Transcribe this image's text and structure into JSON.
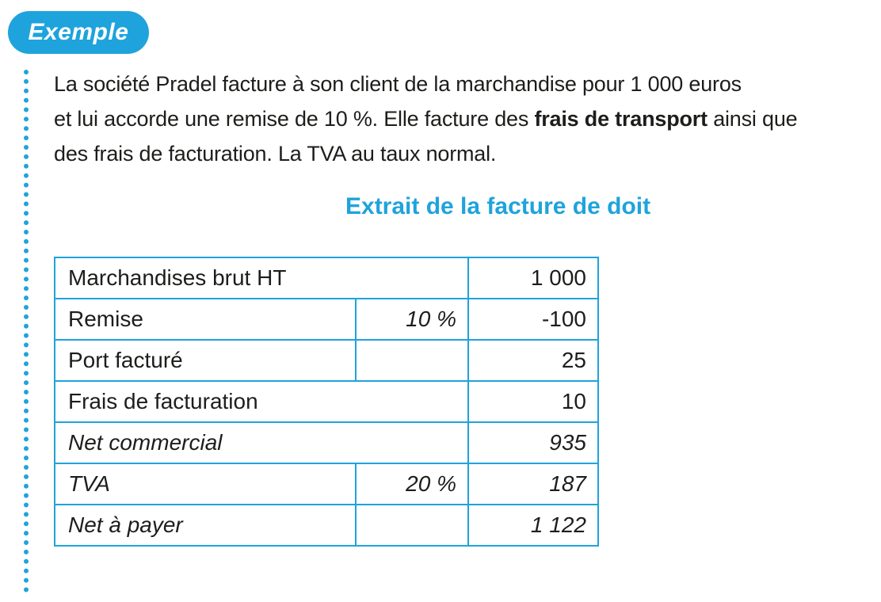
{
  "badge": {
    "label": "Exemple"
  },
  "intro": {
    "line1": "La société Pradel facture à son client de la marchandise pour 1 000 euros",
    "line2_a": "et lui accorde une remise de 10 %. Elle facture des ",
    "line2_bold": "frais de transport",
    "line2_b": " ainsi que",
    "line3": "des frais de facturation. La TVA au taux normal."
  },
  "table_title": "Extrait de la facture de doit",
  "invoice": {
    "rows": [
      {
        "label": "Marchandises brut HT",
        "rate": "",
        "amount": "1 000"
      },
      {
        "label": "Remise",
        "rate": "10 %",
        "amount": "-100"
      },
      {
        "label": "Port facturé",
        "rate": "",
        "amount": "25"
      },
      {
        "label": "Frais de facturation",
        "rate": "",
        "amount": "10"
      },
      {
        "label": "Net commercial",
        "rate": "",
        "amount": "935"
      },
      {
        "label": "TVA",
        "rate": "20 %",
        "amount": "187"
      },
      {
        "label": "Net à payer",
        "rate": "",
        "amount": "1 122"
      }
    ]
  },
  "colors": {
    "accent": "#1fa3dc",
    "text": "#1d1d1b"
  }
}
